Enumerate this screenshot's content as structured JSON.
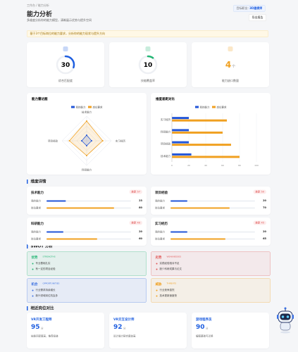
{
  "header": {
    "breadcrumb": "工作台 / 能力分析",
    "title": "能力分析",
    "subtitle": "多维度分析你的能力模型，清晰展示优势与提升空间",
    "target_label": "目标职业:",
    "target": "3D建模师",
    "export": "导出报告"
  },
  "notice": "基于3个目标岗位的能力要求，分析你的能力现状与提升方向",
  "stats": [
    {
      "value": 30,
      "label": "综合匹配度",
      "color": "#1f5fe0"
    },
    {
      "value": 10,
      "label": "技能覆盖率",
      "color": "#22b573"
    },
    {
      "value": 4,
      "unit": "个",
      "label": "能力缺口数量",
      "color": "#f0a020"
    }
  ],
  "radar": {
    "type": "radar",
    "title": "能力雷达图",
    "axes": [
      "技术能力",
      "实习经历",
      "科研能力",
      "项目经验"
    ],
    "rlim": [
      0,
      100
    ],
    "series": [
      {
        "name": "我的能力",
        "color": "#2255d8",
        "values": [
          23,
          20,
          20,
          20
        ]
      },
      {
        "name": "岗位要求",
        "color": "#f0a020",
        "values": [
          80,
          65,
          60,
          70
        ]
      }
    ]
  },
  "gap_chart": {
    "type": "bar",
    "title": "维度差距对比",
    "categories": [
      "实习经历",
      "科研能力",
      "项目经验",
      "技术能力"
    ],
    "series": [
      {
        "name": "我的能力",
        "color": "#2255d8",
        "values": [
          20,
          20,
          20,
          23
        ]
      },
      {
        "name": "岗位要求",
        "color": "#f0a020",
        "values": [
          65,
          60,
          70,
          80
        ]
      }
    ],
    "xlim": [
      0,
      100
    ],
    "xticks": [
      0,
      20,
      40,
      60,
      80,
      100
    ]
  },
  "details": {
    "title": "维度详情",
    "gap_label": "差距",
    "mine_label": "我的能力",
    "required_label": "岗位要求",
    "cards": [
      {
        "name": "技术能力",
        "gap": 57,
        "mine": 23,
        "required": 80
      },
      {
        "name": "项目经验",
        "gap": 50,
        "mine": 20,
        "required": 70
      },
      {
        "name": "科研能力",
        "gap": 40,
        "mine": 20,
        "required": 60
      },
      {
        "name": "实习经历",
        "gap": 45,
        "mine": 20,
        "required": 65
      }
    ]
  },
  "swot": {
    "title": "SWOT 分析",
    "items": [
      {
        "title": "优势",
        "en": "STRENGTHS",
        "color": "#22b573",
        "points": [
          "专业基础扎实",
          "有一定的项目经验"
        ]
      },
      {
        "title": "劣势",
        "en": "WEAKNESSES",
        "color": "#e05555",
        "points": [
          "实践经验相对不足",
          "缺少科研成果与论文"
        ]
      },
      {
        "title": "机会",
        "en": "OPPORTUNITIES",
        "color": "#3a6fe0",
        "points": [
          "行业需求持续增长",
          "新兴领域岗位机会多"
        ]
      },
      {
        "title": "威胁",
        "en": "THREATS",
        "color": "#f0a020",
        "points": [
          "行业竞争激烈",
          "技术更新速度快"
        ]
      }
    ]
  },
  "jobs": {
    "title": "相近岗位对比",
    "unit": "分",
    "items": [
      {
        "name": "VR开发工程师",
        "score": 95,
        "note": "技能匹配度高，推荐投递"
      },
      {
        "name": "VR交互设计师",
        "score": 92,
        "note": "设计能力契合度较高"
      },
      {
        "name": "游戏程序员",
        "score": 90,
        "note": "编程基础可迁移"
      }
    ]
  }
}
